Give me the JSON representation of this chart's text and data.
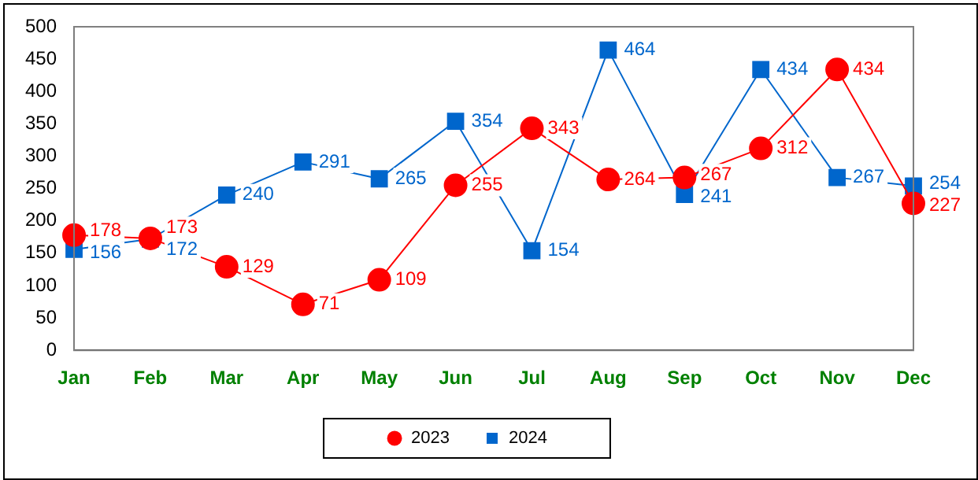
{
  "chart_data": {
    "type": "line",
    "categories": [
      "Jan",
      "Feb",
      "Mar",
      "Apr",
      "May",
      "Jun",
      "Jul",
      "Aug",
      "Sep",
      "Oct",
      "Nov",
      "Dec"
    ],
    "series": [
      {
        "name": "2023",
        "color": "#ff0000",
        "marker": "circle",
        "values": [
          178,
          173,
          129,
          71,
          109,
          255,
          343,
          264,
          267,
          312,
          434,
          227
        ]
      },
      {
        "name": "2024",
        "color": "#0066cc",
        "marker": "square",
        "values": [
          156,
          172,
          240,
          291,
          265,
          354,
          154,
          464,
          241,
          434,
          267,
          254
        ]
      }
    ],
    "ylim": [
      0,
      500
    ],
    "yticks": [
      0,
      50,
      100,
      150,
      200,
      250,
      300,
      350,
      400,
      450,
      500
    ],
    "grid": false,
    "legend": "bottom",
    "data_labels": true,
    "line_style": "solid"
  }
}
